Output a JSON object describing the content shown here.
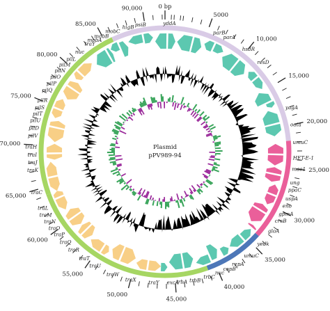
{
  "center": {
    "line1": "Plasmid",
    "line2": "pPV989-94"
  },
  "colors": {
    "backbone_lavender": "#d9cbe6",
    "conjugation_green": "#a6d663",
    "replication_blue": "#4d77b8",
    "stress_pink": "#ea5f9a",
    "transfer_orange": "#f8cf86",
    "gene_teal": "#5cc8b0",
    "gc_content": "#000000",
    "gc_skew_positive": "#3aa55b",
    "gc_skew_negative": "#9b2b9b"
  },
  "position_labels": [
    {
      "text": "0 bp",
      "deg": 0
    },
    {
      "text": "5000",
      "deg": 19.5
    },
    {
      "text": "10,000",
      "deg": 39
    },
    {
      "text": "15,000",
      "deg": 58.5
    },
    {
      "text": "20,000",
      "deg": 78
    },
    {
      "text": "25,000",
      "deg": 97.5
    },
    {
      "text": "30,000",
      "deg": 117
    },
    {
      "text": "35,000",
      "deg": 136.5
    },
    {
      "text": "40,000",
      "deg": 156
    },
    {
      "text": "45,000",
      "deg": 175.5
    },
    {
      "text": "50,000",
      "deg": 195
    },
    {
      "text": "55,000",
      "deg": 214.5
    },
    {
      "text": "60,000",
      "deg": 234
    },
    {
      "text": "65,000",
      "deg": 253.5
    },
    {
      "text": "70,000",
      "deg": 273
    },
    {
      "text": "75,000",
      "deg": 292.5
    },
    {
      "text": "80,000",
      "deg": 312
    },
    {
      "text": "85,000",
      "deg": 331.5
    },
    {
      "text": "90,000",
      "deg": 351
    }
  ],
  "gene_labels": [
    {
      "text": "yddA",
      "deg": 2
    },
    {
      "text": "parB",
      "deg": 22
    },
    {
      "text": "parA",
      "deg": 27
    },
    {
      "text": "hsdR",
      "deg": 37
    },
    {
      "text": "resD",
      "deg": 46
    },
    {
      "text": "yagA",
      "deg": 70
    },
    {
      "text": "oata",
      "deg": 78
    },
    {
      "text": "umuC",
      "deg": 86
    },
    {
      "text": "HET-E-1",
      "deg": 93
    },
    {
      "text": "mae1",
      "deg": 98
    },
    {
      "text": "ung",
      "deg": 102.5
    },
    {
      "text": "ppaC",
      "deg": 106
    },
    {
      "text": "uspA",
      "deg": 110
    },
    {
      "text": "eno",
      "deg": 113.5
    },
    {
      "text": "gpmA",
      "deg": 117.5
    },
    {
      "text": "crcB",
      "deg": 121
    },
    {
      "text": "gloA",
      "deg": 126.5
    },
    {
      "text": "yedk",
      "deg": 134
    },
    {
      "text": "umuC",
      "deg": 142
    },
    {
      "text": "repA",
      "deg": 148.5
    },
    {
      "text": "copB",
      "deg": 153
    },
    {
      "text": "nuc",
      "deg": 157
    },
    {
      "text": "trbC",
      "deg": 162.5
    },
    {
      "text": "trbB",
      "deg": 169
    },
    {
      "text": "trbA",
      "deg": 172.5
    },
    {
      "text": "excA",
      "deg": 176.5
    },
    {
      "text": "traY",
      "deg": 185
    },
    {
      "text": "traX",
      "deg": 193
    },
    {
      "text": "traW",
      "deg": 201
    },
    {
      "text": "traU",
      "deg": 210
    },
    {
      "text": "traT",
      "deg": 216
    },
    {
      "text": "traR",
      "deg": 222
    },
    {
      "text": "traQ",
      "deg": 227
    },
    {
      "text": "traP",
      "deg": 231.5
    },
    {
      "text": "traO",
      "deg": 235
    },
    {
      "text": "traN",
      "deg": 238.5
    },
    {
      "text": "traM",
      "deg": 242
    },
    {
      "text": "traL",
      "deg": 245.5
    },
    {
      "text": "traC",
      "deg": 253
    },
    {
      "text": "traK",
      "deg": 261.5
    },
    {
      "text": "traJ",
      "deg": 265
    },
    {
      "text": "traI",
      "deg": 268.5
    },
    {
      "text": "traH",
      "deg": 272
    },
    {
      "text": "pilV",
      "deg": 277
    },
    {
      "text": "pilD",
      "deg": 280.5
    },
    {
      "text": "pilU",
      "deg": 284
    },
    {
      "text": "pilT",
      "deg": 287
    },
    {
      "text": "pilS",
      "deg": 290
    },
    {
      "text": "pilR",
      "deg": 293.5
    },
    {
      "text": "pilQ",
      "deg": 298.5
    },
    {
      "text": "pilP",
      "deg": 302
    },
    {
      "text": "pilO",
      "deg": 305.5
    },
    {
      "text": "pilN",
      "deg": 309
    },
    {
      "text": "pilM",
      "deg": 312.5
    },
    {
      "text": "pilL",
      "deg": 316
    },
    {
      "text": "nuc",
      "deg": 321
    },
    {
      "text": "traY",
      "deg": 327
    },
    {
      "text": "mobA",
      "deg": 330.5
    },
    {
      "text": "mobB",
      "deg": 334
    },
    {
      "text": "mobC",
      "deg": 339.5
    },
    {
      "text": "higB",
      "deg": 346
    },
    {
      "text": "psiB",
      "deg": 351.5
    }
  ]
}
